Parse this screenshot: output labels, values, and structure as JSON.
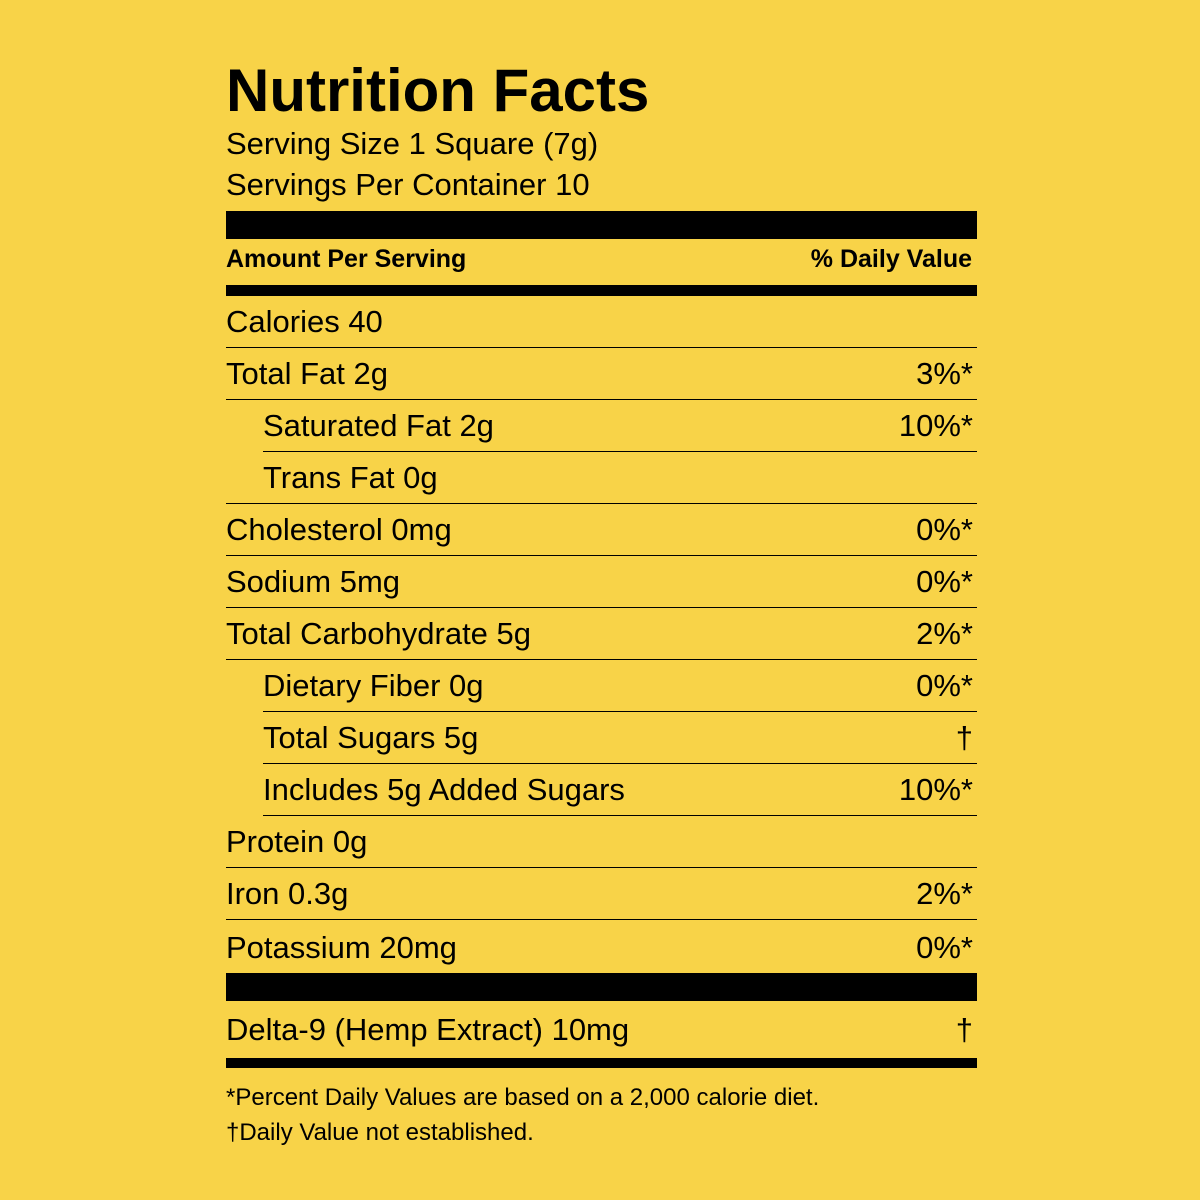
{
  "colors": {
    "background": "#F8D348",
    "ink": "#000000"
  },
  "title": "Nutrition Facts",
  "serving_size": "Serving Size 1 Square (7g)",
  "servings_per_container": "Servings Per Container 10",
  "header": {
    "amount": "Amount Per Serving",
    "daily_value": "% Daily Value"
  },
  "rows": [
    {
      "name": "Calories 40",
      "dv": ""
    },
    {
      "name": "Total Fat 2g",
      "dv": "3%*"
    },
    {
      "name": "Saturated Fat 2g",
      "dv": "10%*"
    },
    {
      "name": "Trans Fat 0g",
      "dv": ""
    },
    {
      "name": "Cholesterol 0mg",
      "dv": "0%*"
    },
    {
      "name": "Sodium 5mg",
      "dv": "0%*"
    },
    {
      "name": "Total Carbohydrate 5g",
      "dv": "2%*"
    },
    {
      "name": "Dietary Fiber 0g",
      "dv": "0%*"
    },
    {
      "name": "Total Sugars 5g",
      "dv": "†"
    },
    {
      "name": "Includes 5g Added Sugars",
      "dv": "10%*"
    },
    {
      "name": "Protein 0g",
      "dv": ""
    },
    {
      "name": "Iron 0.3g",
      "dv": "2%*"
    },
    {
      "name": "Potassium 20mg",
      "dv": "0%*"
    }
  ],
  "delta": {
    "name": "Delta-9 (Hemp Extract) 10mg",
    "dv": "†"
  },
  "footnotes": [
    "*Percent Daily Values are based on a 2,000 calorie diet.",
    "†Daily Value not established."
  ]
}
